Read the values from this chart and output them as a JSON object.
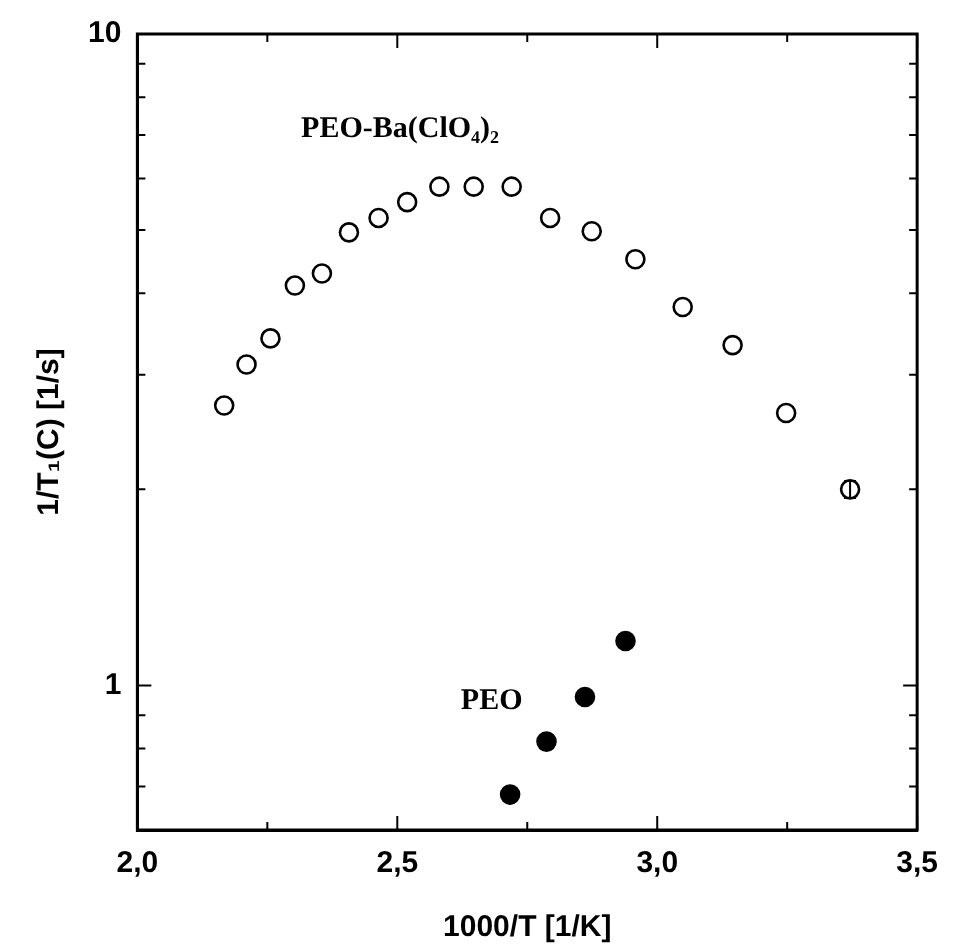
{
  "chart_data": {
    "type": "scatter",
    "xlabel": "1000/T [1/K]",
    "ylabel": "1/T₁(C) [1/s]",
    "log": "y",
    "grid": false,
    "legend": false,
    "marker": "circle",
    "xlim": [
      2.0,
      3.5
    ],
    "xticks": [
      {
        "value": 2,
        "label": "2,0"
      },
      {
        "value": 2.25,
        "label": null
      },
      {
        "value": 2.5,
        "label": "2,5"
      },
      {
        "value": 2.75,
        "label": null
      },
      {
        "value": 3,
        "label": "3,0"
      },
      {
        "value": 3.25,
        "label": null
      },
      {
        "value": 3.5,
        "label": "3,5"
      }
    ],
    "ylim": [
      0.6,
      10
    ],
    "yticks": [
      {
        "value": 0.7,
        "label": null
      },
      {
        "value": 0.8,
        "label": null
      },
      {
        "value": 0.9,
        "label": null
      },
      1,
      {
        "value": 2,
        "label": null
      },
      {
        "value": 3,
        "label": null
      },
      {
        "value": 4,
        "label": null
      },
      {
        "value": 5,
        "label": null
      },
      {
        "value": 6,
        "label": null
      },
      {
        "value": 7,
        "label": null
      },
      {
        "value": 8,
        "label": null
      },
      {
        "value": 9,
        "label": null
      },
      10
    ],
    "series": [
      {
        "name": "PEO-Ba(ClO₄)₂",
        "color": "#000000",
        "x": [
          2.167,
          2.21,
          2.256,
          2.303,
          2.355,
          2.407,
          2.464,
          2.519,
          2.581,
          2.647,
          2.72,
          2.794,
          2.874,
          2.958,
          3.049,
          3.145,
          3.248,
          3.371
        ],
        "values": [
          2.69,
          3.11,
          3.41,
          4.11,
          4.29,
          4.96,
          5.22,
          5.52,
          5.83,
          5.83,
          5.83,
          5.22,
          4.98,
          4.51,
          3.81,
          3.33,
          2.62,
          2.0
        ],
        "errors": [
          null,
          null,
          null,
          null,
          null,
          null,
          null,
          null,
          null,
          null,
          null,
          null,
          null,
          null,
          null,
          null,
          null,
          0.06
        ]
      },
      {
        "name": "PEO",
        "color": "#000000",
        "x": [
          2.717,
          2.787,
          2.861,
          2.939
        ],
        "values": [
          0.68,
          0.82,
          0.96,
          1.17
        ]
      }
    ]
  }
}
